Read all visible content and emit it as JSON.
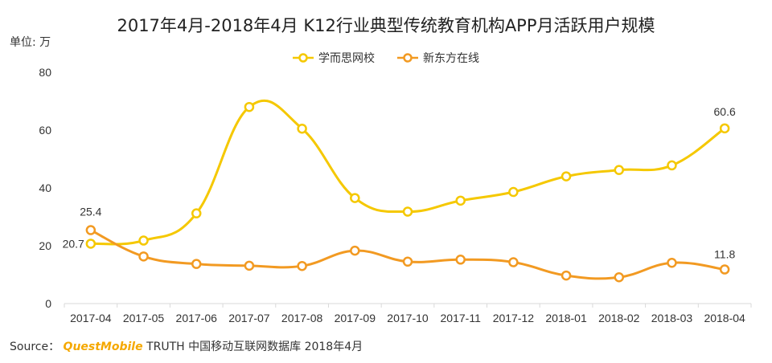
{
  "title": "2017年4月-2018年4月 K12行业典型传统教育机构APP月活跃用户规模",
  "unit": "单位: 万",
  "source": {
    "prefix": "Source：",
    "brand": "QuestMobile",
    "rest": " TRUTH 中国移动互联网数据库 2018年4月"
  },
  "colors": {
    "series1": "#f5c800",
    "series2": "#f29a22",
    "axis": "#d9d9d9"
  },
  "chart_data": {
    "type": "line",
    "title": "2017年4月-2018年4月 K12行业典型传统教育机构APP月活跃用户规模",
    "ylabel": "单位: 万",
    "ylim": [
      0,
      80
    ],
    "yticks": [
      0,
      20,
      40,
      60,
      80
    ],
    "grid": false,
    "legend_position": "top",
    "smooth": true,
    "categories": [
      "2017-04",
      "2017-05",
      "2017-06",
      "2017-07",
      "2017-08",
      "2017-09",
      "2017-10",
      "2017-11",
      "2017-12",
      "2018-01",
      "2018-02",
      "2018-03",
      "2018-04"
    ],
    "series": [
      {
        "name": "学而思网校",
        "values": [
          20.7,
          21.8,
          31.2,
          68,
          60.5,
          36.5,
          31.8,
          35.6,
          38.6,
          44,
          46.2,
          47.8,
          60.6
        ],
        "labels": {
          "0": "20.7",
          "12": "60.6"
        }
      },
      {
        "name": "新东方在线",
        "values": [
          25.4,
          16.3,
          13.7,
          13.1,
          13,
          18.3,
          14.5,
          15.2,
          14.3,
          9.7,
          9.1,
          14.1,
          11.8
        ],
        "labels": {
          "0": "25.4",
          "12": "11.8"
        }
      }
    ]
  }
}
